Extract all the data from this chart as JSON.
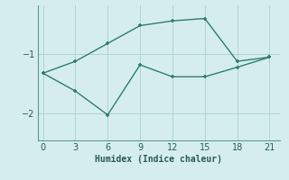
{
  "xlabel": "Humidex (Indice chaleur)",
  "bg_color": "#d5eeed",
  "line_color": "#2e7d6e",
  "grid_color": "#b0d4ce",
  "line1_x": [
    0,
    3,
    6,
    9,
    12,
    15,
    18,
    21
  ],
  "line1_y": [
    -1.32,
    -1.12,
    -0.82,
    -0.52,
    -0.44,
    -0.4,
    -1.12,
    -1.05
  ],
  "line2_x": [
    0,
    3,
    6,
    9,
    12,
    15,
    18,
    21
  ],
  "line2_y": [
    -1.32,
    -1.62,
    -2.02,
    -1.18,
    -1.38,
    -1.38,
    -1.22,
    -1.05
  ],
  "xlim": [
    -0.5,
    22
  ],
  "ylim": [
    -2.45,
    -0.18
  ],
  "xticks": [
    0,
    3,
    6,
    9,
    12,
    15,
    18,
    21
  ],
  "yticks": [
    -2,
    -1
  ],
  "markersize": 3.5,
  "linewidth": 1.0
}
